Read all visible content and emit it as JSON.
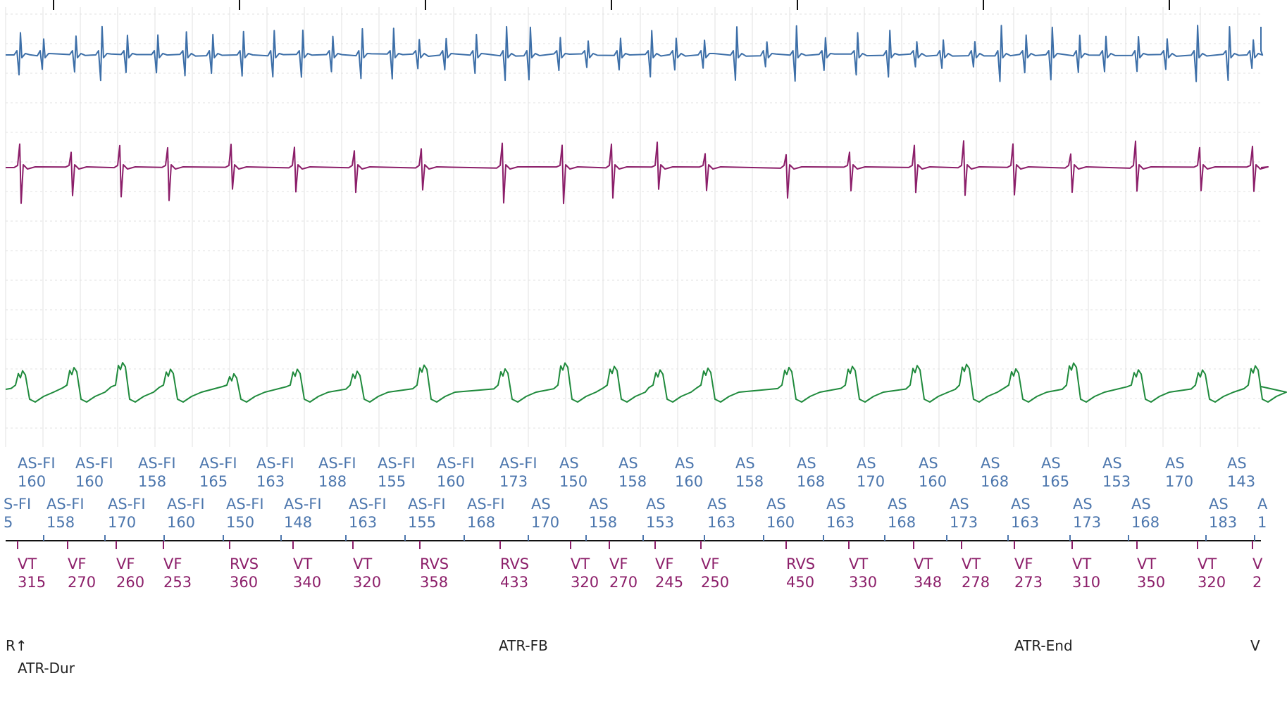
{
  "colors": {
    "atrial_egm": "#3d6fa8",
    "ventricular_egm": "#8c1f6a",
    "shock_egm": "#1f8a3c",
    "marker_atrial": "#4c76ad",
    "marker_ventricular": "#8c1f6a",
    "grid": "#e2e2e2",
    "axis": "#111111"
  },
  "strip": {
    "atrial_markers_row1": [
      {
        "label": "AS-FI",
        "value": "160"
      },
      {
        "label": "AS-FI",
        "value": "160"
      },
      {
        "label": "AS-FI",
        "value": "158"
      },
      {
        "label": "AS-FI",
        "value": "165"
      },
      {
        "label": "AS-FI",
        "value": "163"
      },
      {
        "label": "AS-FI",
        "value": "188"
      },
      {
        "label": "AS-FI",
        "value": "155"
      },
      {
        "label": "AS-FI",
        "value": "160"
      },
      {
        "label": "AS-FI",
        "value": "173"
      },
      {
        "label": "AS",
        "value": "150"
      },
      {
        "label": "AS",
        "value": "158"
      },
      {
        "label": "AS",
        "value": "160"
      },
      {
        "label": "AS",
        "value": "158"
      },
      {
        "label": "AS",
        "value": "168"
      },
      {
        "label": "AS",
        "value": "170"
      },
      {
        "label": "AS",
        "value": "160"
      },
      {
        "label": "AS",
        "value": "168"
      },
      {
        "label": "AS",
        "value": "165"
      },
      {
        "label": "AS",
        "value": "153"
      },
      {
        "label": "AS",
        "value": "170"
      },
      {
        "label": "AS",
        "value": "143"
      }
    ],
    "atrial_markers_row2": [
      {
        "label": "S-FI",
        "value": "5"
      },
      {
        "label": "AS-FI",
        "value": "158"
      },
      {
        "label": "AS-FI",
        "value": "170"
      },
      {
        "label": "AS-FI",
        "value": "160"
      },
      {
        "label": "AS-FI",
        "value": "150"
      },
      {
        "label": "AS-FI",
        "value": "148"
      },
      {
        "label": "AS-FI",
        "value": "163"
      },
      {
        "label": "AS-FI",
        "value": "155"
      },
      {
        "label": "AS-FI",
        "value": "168"
      },
      {
        "label": "AS",
        "value": "170"
      },
      {
        "label": "AS",
        "value": "158"
      },
      {
        "label": "AS",
        "value": "153"
      },
      {
        "label": "AS",
        "value": "163"
      },
      {
        "label": "AS",
        "value": "160"
      },
      {
        "label": "AS",
        "value": "163"
      },
      {
        "label": "AS",
        "value": "168"
      },
      {
        "label": "AS",
        "value": "173"
      },
      {
        "label": "AS",
        "value": "163"
      },
      {
        "label": "AS",
        "value": "173"
      },
      {
        "label": "AS",
        "value": "168"
      },
      {
        "label": "AS",
        "value": "183"
      },
      {
        "label": "A",
        "value": "1"
      }
    ],
    "ventricular_markers": [
      {
        "label": "VT",
        "value": "315"
      },
      {
        "label": "VF",
        "value": "270"
      },
      {
        "label": "VF",
        "value": "260"
      },
      {
        "label": "VF",
        "value": "253"
      },
      {
        "label": "RVS",
        "value": "360"
      },
      {
        "label": "VT",
        "value": "340"
      },
      {
        "label": "VT",
        "value": "320"
      },
      {
        "label": "RVS",
        "value": "358"
      },
      {
        "label": "RVS",
        "value": "433"
      },
      {
        "label": "VT",
        "value": "320"
      },
      {
        "label": "VF",
        "value": "270"
      },
      {
        "label": "VF",
        "value": "245"
      },
      {
        "label": "VF",
        "value": "250"
      },
      {
        "label": "RVS",
        "value": "450"
      },
      {
        "label": "VT",
        "value": "330"
      },
      {
        "label": "VT",
        "value": "348"
      },
      {
        "label": "VT",
        "value": "278"
      },
      {
        "label": "VF",
        "value": "273"
      },
      {
        "label": "VT",
        "value": "310"
      },
      {
        "label": "VT",
        "value": "350"
      },
      {
        "label": "VT",
        "value": "320"
      },
      {
        "label": "V",
        "value": "2"
      }
    ],
    "events": [
      {
        "label": "R↑"
      },
      {
        "label": "ATR-Dur"
      },
      {
        "label": "ATR-FB"
      },
      {
        "label": "ATR-End"
      },
      {
        "label": "V"
      }
    ]
  }
}
